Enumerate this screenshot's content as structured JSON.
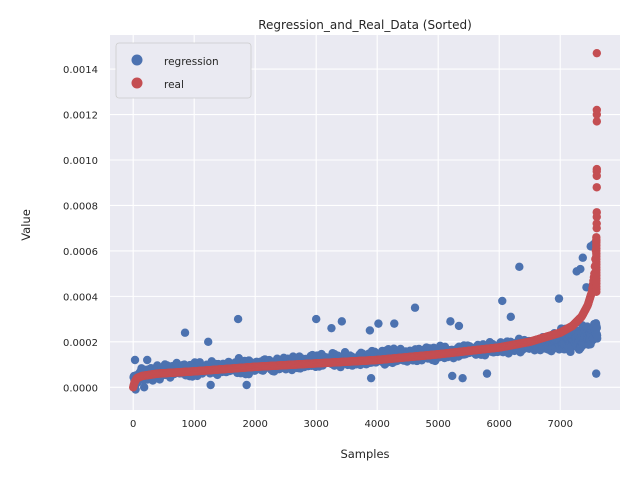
{
  "chart_data": {
    "type": "scatter",
    "title": "Regression_and_Real_Data (Sorted)",
    "xlabel": "Samples",
    "ylabel": "Value",
    "xlim": [
      -380,
      7980
    ],
    "ylim": [
      -0.0001,
      0.00155
    ],
    "xticks": [
      0,
      1000,
      2000,
      3000,
      4000,
      5000,
      6000,
      7000
    ],
    "xtick_labels": [
      "0",
      "1000",
      "2000",
      "3000",
      "4000",
      "5000",
      "6000",
      "7000"
    ],
    "yticks": [
      0,
      0.0002,
      0.0004,
      0.0006,
      0.0008,
      0.001,
      0.0012,
      0.0014
    ],
    "ytick_labels": [
      "0.0000",
      "0.0002",
      "0.0004",
      "0.0006",
      "0.0008",
      "0.0010",
      "0.0012",
      "0.0014"
    ],
    "grid": true,
    "legend_position": "upper-left",
    "n_samples": 7600,
    "series": [
      {
        "name": "regression",
        "color": "#4c72b0",
        "trend": {
          "x": [
            0,
            100,
            500,
            1000,
            2000,
            3000,
            4000,
            5000,
            6000,
            6500,
            7000,
            7300,
            7500,
            7600
          ],
          "y": [
            3e-05,
            5e-05,
            7e-05,
            8e-05,
            9.5e-05,
            0.00011,
            0.00013,
            0.00015,
            0.000175,
            0.000185,
            0.0002,
            0.000215,
            0.00024,
            0.00025
          ]
        },
        "spread": 4e-05,
        "outliers": [
          {
            "x": 30,
            "y": 0.00012
          },
          {
            "x": 230,
            "y": 0.00012
          },
          {
            "x": 850,
            "y": 0.00024
          },
          {
            "x": 1230,
            "y": 0.0002
          },
          {
            "x": 1720,
            "y": 0.0003
          },
          {
            "x": 3000,
            "y": 0.0003
          },
          {
            "x": 3250,
            "y": 0.00026
          },
          {
            "x": 3420,
            "y": 0.00029
          },
          {
            "x": 3880,
            "y": 0.00025
          },
          {
            "x": 4020,
            "y": 0.00028
          },
          {
            "x": 4280,
            "y": 0.00028
          },
          {
            "x": 4620,
            "y": 0.00035
          },
          {
            "x": 5200,
            "y": 0.00029
          },
          {
            "x": 5340,
            "y": 0.00027
          },
          {
            "x": 6050,
            "y": 0.00038
          },
          {
            "x": 6190,
            "y": 0.00031
          },
          {
            "x": 6330,
            "y": 0.00053
          },
          {
            "x": 6980,
            "y": 0.00039
          },
          {
            "x": 7270,
            "y": 0.00051
          },
          {
            "x": 7330,
            "y": 0.00052
          },
          {
            "x": 7370,
            "y": 0.00057
          },
          {
            "x": 7430,
            "y": 0.00044
          },
          {
            "x": 7500,
            "y": 0.00062
          },
          {
            "x": 7550,
            "y": 0.00063
          },
          {
            "x": 7590,
            "y": 6e-05
          },
          {
            "x": 5230,
            "y": 5e-05
          },
          {
            "x": 5400,
            "y": 4e-05
          },
          {
            "x": 5800,
            "y": 6e-05
          },
          {
            "x": 3900,
            "y": 4e-05
          },
          {
            "x": 1270,
            "y": 1e-05
          },
          {
            "x": 1860,
            "y": 1e-05
          },
          {
            "x": 40,
            "y": -1e-05
          },
          {
            "x": 180,
            "y": 0.0
          }
        ]
      },
      {
        "name": "real",
        "color": "#c44e52",
        "curve": {
          "x": [
            0,
            20,
            60,
            150,
            400,
            1000,
            2000,
            3000,
            4000,
            5000,
            5500,
            6000,
            6500,
            7000,
            7200,
            7350,
            7450,
            7520,
            7560,
            7580,
            7595
          ],
          "y": [
            0.0,
            2e-05,
            4e-05,
            5e-05,
            6e-05,
            7e-05,
            9e-05,
            0.000105,
            0.00012,
            0.000145,
            0.00016,
            0.000175,
            0.0002,
            0.00024,
            0.00027,
            0.00031,
            0.00036,
            0.00042,
            0.0005,
            0.00058,
            0.00066
          ]
        },
        "tail": [
          {
            "x": 7598,
            "y": 0.0007
          },
          {
            "x": 7598,
            "y": 0.00072
          },
          {
            "x": 7599,
            "y": 0.00075
          },
          {
            "x": 7599,
            "y": 0.00077
          },
          {
            "x": 7599,
            "y": 0.00088
          },
          {
            "x": 7599,
            "y": 0.00093
          },
          {
            "x": 7599,
            "y": 0.00095
          },
          {
            "x": 7600,
            "y": 0.00096
          },
          {
            "x": 7600,
            "y": 0.00117
          },
          {
            "x": 7600,
            "y": 0.0012
          },
          {
            "x": 7600,
            "y": 0.00122
          },
          {
            "x": 7600,
            "y": 0.00147
          }
        ]
      }
    ]
  }
}
